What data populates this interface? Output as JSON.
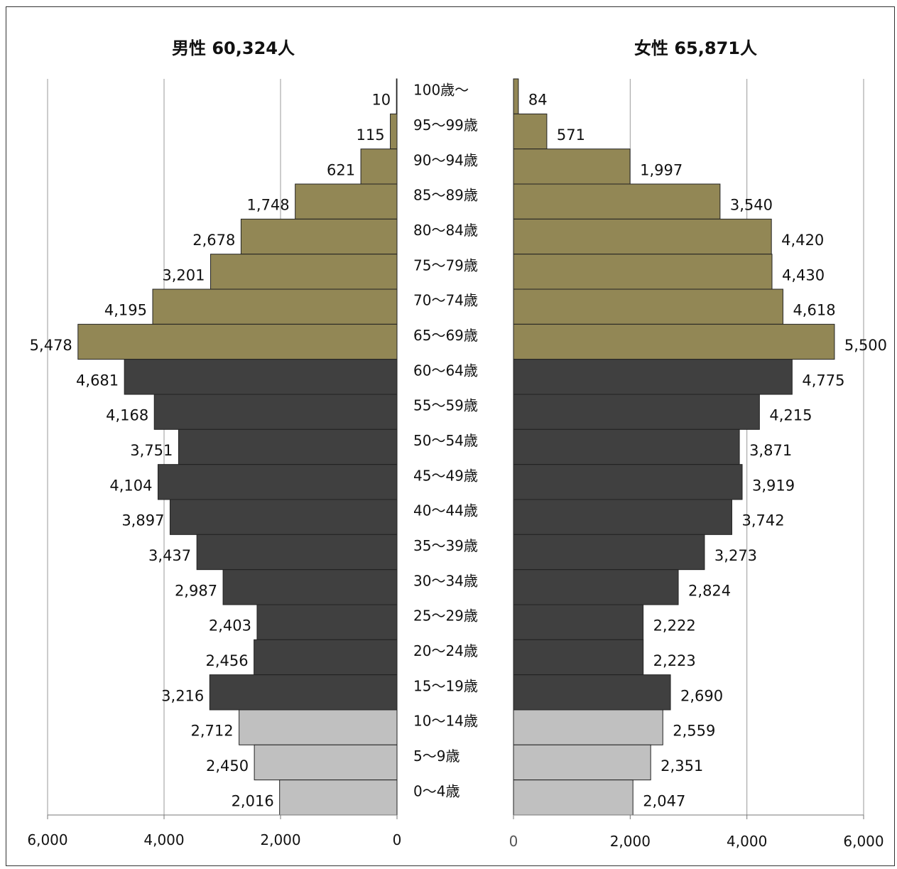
{
  "header": {
    "male_title": "男性  60,324人",
    "female_title": "女性  65,871人"
  },
  "colors": {
    "elderly": "#928755",
    "working": "#404040",
    "young": "#c0c0c0",
    "grid": "#9a9a9a",
    "bar_border": "#222222"
  },
  "chart_data": {
    "type": "bar",
    "orientation": "horizontal",
    "layout": "population-pyramid",
    "categories": [
      "100歳～",
      "95～99歳",
      "90～94歳",
      "85～89歳",
      "80～84歳",
      "75～79歳",
      "70～74歳",
      "65～69歳",
      "60～64歳",
      "55～59歳",
      "50～54歳",
      "45～49歳",
      "40～44歳",
      "35～39歳",
      "30～34歳",
      "25～29歳",
      "20～24歳",
      "15～19歳",
      "10～14歳",
      "5～9歳",
      "0～4歳"
    ],
    "category_groups": [
      "elderly",
      "elderly",
      "elderly",
      "elderly",
      "elderly",
      "elderly",
      "elderly",
      "elderly",
      "working",
      "working",
      "working",
      "working",
      "working",
      "working",
      "working",
      "working",
      "working",
      "working",
      "young",
      "young",
      "young"
    ],
    "series": [
      {
        "side": "left",
        "values": [
          10,
          115,
          621,
          1748,
          2678,
          3201,
          4195,
          5478,
          4681,
          4168,
          3751,
          4104,
          3897,
          3437,
          2987,
          2403,
          2456,
          3216,
          2712,
          2450,
          2016
        ],
        "labels": [
          "10",
          "115",
          "621",
          "1,748",
          "2,678",
          "3,201",
          "4,195",
          "5,478",
          "4,681",
          "4,168",
          "3,751",
          "4,104",
          "3,897",
          "3,437",
          "2,987",
          "2,403",
          "2,456",
          "3,216",
          "2,712",
          "2,450",
          "2,016"
        ]
      },
      {
        "side": "right",
        "values": [
          84,
          571,
          1997,
          3540,
          4420,
          4430,
          4618,
          5500,
          4775,
          4215,
          3871,
          3919,
          3742,
          3273,
          2824,
          2222,
          2223,
          2690,
          2559,
          2351,
          2047
        ],
        "labels": [
          "84",
          "571",
          "1,997",
          "3,540",
          "4,420",
          "4,430",
          "4,618",
          "5,500",
          "4,775",
          "4,215",
          "3,871",
          "3,919",
          "3,742",
          "3,273",
          "2,824",
          "2,222",
          "2,223",
          "2,690",
          "2,559",
          "2,351",
          "2,047"
        ]
      }
    ],
    "left_axis": {
      "range": [
        0,
        6000
      ],
      "ticks": [
        "6,000",
        "4,000",
        "2,000",
        "0"
      ],
      "reversed": true
    },
    "right_axis": {
      "range": [
        0,
        6000
      ],
      "ticks": [
        "0",
        "2,000",
        "4,000",
        "6,000"
      ]
    },
    "grid": true
  }
}
